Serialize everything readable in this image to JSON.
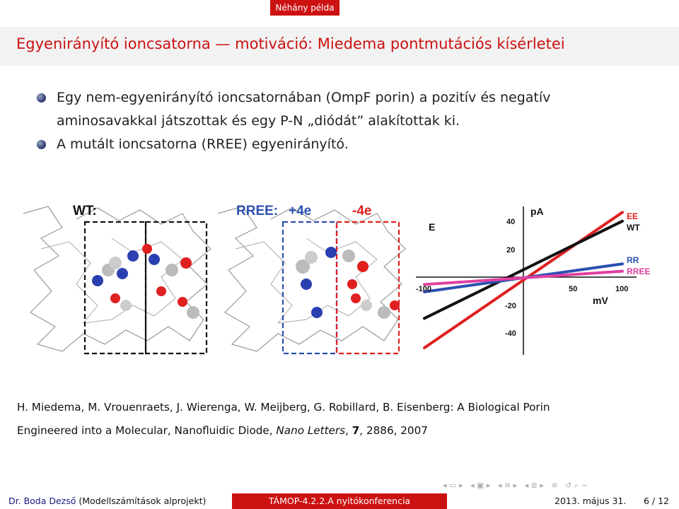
{
  "header": {
    "section": "Néhány példa"
  },
  "slide": {
    "title": "Egyenirányító ioncsatorna — motiváció: Miedema pontmutációs kísérletei",
    "bullets": [
      {
        "line1": "Egy nem-egyenirányító ioncsatornában (OmpF porin) a pozitív és negatív",
        "line2": "aminosavakkal játszottak és egy P-N „diódát” alakítottak ki."
      },
      {
        "line1": "A mutált ioncsatorna (RREE) egyenirányító."
      }
    ],
    "figure": {
      "wt_label": "WT:",
      "rree_label": "RREE:",
      "plus_label": "+4e",
      "minus_label": "-4e",
      "chart_axis_e": "E",
      "chart_unit_pa": "pA",
      "chart_unit_mv": "mV",
      "y_ticks": [
        "40",
        "20",
        "-20",
        "-40"
      ],
      "x_ticks": [
        "-100",
        "50",
        "100"
      ],
      "legend": [
        "EE",
        "WT",
        "RR",
        "RREE"
      ]
    },
    "reference": {
      "authors": "H. Miedema, M. Vrouenraets, J. Wierenga, W. Meijberg, G. Robillard, B. Eisenberg: A Biological Porin",
      "line2_pre": "Engineered into a Molecular, Nanofluidic Diode, ",
      "journal": "Nano Letters",
      "volume": "7",
      "rest": ", 2886, 2007"
    }
  },
  "footer": {
    "author": "Dr. Boda Dezső",
    "author_note": "(Modellszámítások alprojekt)",
    "event": "TÁMOP-4.2.2.A nyitókonferencia",
    "date": "2013. május 31.",
    "page": "6 / 12"
  },
  "chart_data": {
    "type": "line",
    "x_unit": "mV",
    "y_unit": "pA",
    "xlim": [
      -100,
      100
    ],
    "ylim": [
      -48,
      48
    ],
    "series": [
      {
        "name": "EE",
        "color": "#e02020",
        "x": [
          -100,
          100
        ],
        "y": [
          -48,
          44
        ]
      },
      {
        "name": "WT",
        "color": "#111111",
        "x": [
          -100,
          100
        ],
        "y": [
          -28,
          38
        ]
      },
      {
        "name": "RR",
        "color": "#2a4fb0",
        "x": [
          -100,
          100
        ],
        "y": [
          -10,
          9
        ]
      },
      {
        "name": "RREE",
        "color": "#e040a0",
        "x": [
          -100,
          100
        ],
        "y": [
          -5,
          4
        ]
      }
    ]
  },
  "colors": {
    "accent": "#cc1111",
    "title": "#cc1111",
    "bullet": "#3a4a7c"
  }
}
